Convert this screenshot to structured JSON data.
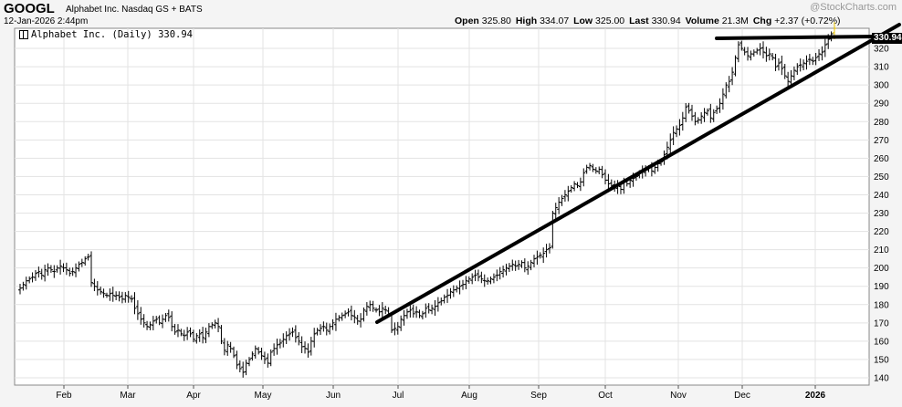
{
  "header": {
    "symbol": "GOOGL",
    "company": "Alphabet Inc.  Nasdaq GS + BATS",
    "timestamp": "12-Jan-2026 2:44pm",
    "watermark": "@StockCharts.com",
    "open_label": "Open",
    "open": "325.80",
    "high_label": "High",
    "high": "334.07",
    "low_label": "Low",
    "low": "325.00",
    "last_label": "Last",
    "last": "330.94",
    "volume_label": "Volume",
    "volume": "21.3M",
    "chg_label": "Chg",
    "chg": "+2.37 (+0.72%)"
  },
  "chart_data": {
    "type": "ohlc",
    "title": "Alphabet Inc. (Daily) 330.94",
    "last_price_label": "330.94",
    "x_months": [
      "Feb",
      "Mar",
      "Apr",
      "May",
      "Jun",
      "Jul",
      "Aug",
      "Sep",
      "Oct",
      "Nov",
      "Dec",
      "2026"
    ],
    "y_ticks": [
      140,
      150,
      160,
      170,
      180,
      190,
      200,
      210,
      220,
      230,
      240,
      250,
      260,
      270,
      280,
      290,
      300,
      310,
      320
    ],
    "ylim": [
      136,
      331
    ],
    "grid": true,
    "closes": [
      189,
      191,
      193,
      194,
      195,
      197,
      198,
      196,
      199,
      200,
      199,
      198,
      200,
      201,
      200,
      199,
      197,
      198,
      200,
      202,
      203,
      205,
      206,
      192,
      190,
      188,
      187,
      186,
      185,
      186,
      185,
      185,
      184,
      183,
      185,
      184,
      183,
      178,
      175,
      172,
      170,
      168,
      169,
      171,
      172,
      170,
      172,
      174,
      173,
      168,
      165,
      166,
      164,
      163,
      165,
      164,
      161,
      163,
      164,
      162,
      165,
      168,
      169,
      170,
      168,
      160,
      155,
      158,
      156,
      152,
      147,
      145,
      143,
      148,
      150,
      153,
      156,
      154,
      152,
      150,
      148,
      154,
      156,
      158,
      159,
      161,
      163,
      164,
      165,
      162,
      160,
      157,
      156,
      154,
      160,
      164,
      166,
      167,
      168,
      166,
      168,
      170,
      172,
      173,
      174,
      175,
      176,
      174,
      173,
      171,
      172,
      177,
      179,
      180,
      178,
      177,
      176,
      178,
      177,
      175,
      166,
      167,
      168,
      172,
      174,
      176,
      177,
      175,
      176,
      174,
      175,
      178,
      177,
      178,
      179,
      181,
      182,
      184,
      185,
      187,
      188,
      189,
      190,
      191,
      193,
      194,
      195,
      196,
      195,
      194,
      193,
      193,
      194,
      195,
      196,
      198,
      199,
      200,
      201,
      202,
      201,
      202,
      203,
      200,
      201,
      203,
      205,
      206,
      207,
      208,
      210,
      211,
      230,
      233,
      236,
      238,
      240,
      242,
      244,
      246,
      245,
      247,
      252,
      255,
      256,
      254,
      253,
      254,
      251,
      248,
      246,
      245,
      244,
      245,
      243,
      247,
      246,
      248,
      249,
      250,
      252,
      253,
      254,
      255,
      253,
      255,
      257,
      258,
      262,
      266,
      270,
      274,
      276,
      278,
      282,
      288,
      286,
      283,
      280,
      281,
      283,
      285,
      286,
      282,
      285,
      287,
      290,
      295,
      300,
      302,
      307,
      315,
      322,
      320,
      318,
      316,
      317,
      318,
      319,
      320,
      318,
      316,
      317,
      315,
      310,
      312,
      309,
      305,
      302,
      305,
      308,
      310,
      311,
      312,
      313,
      314,
      313,
      315,
      317,
      318,
      322,
      325,
      328,
      330.94
    ]
  }
}
